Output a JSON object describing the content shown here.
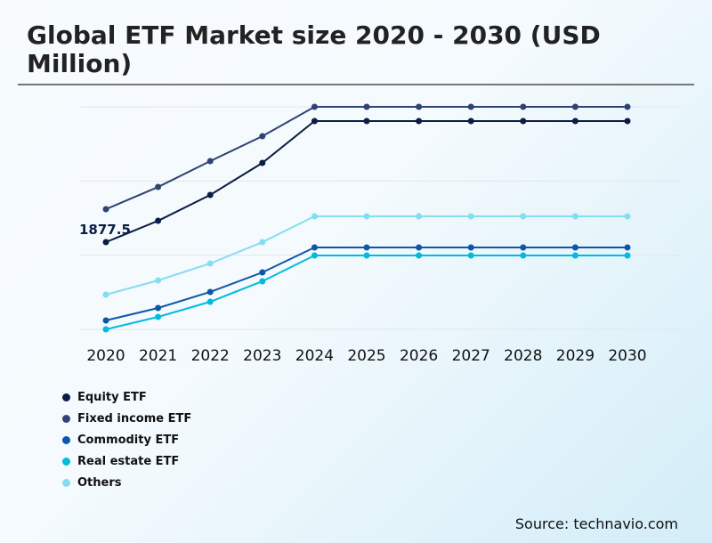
{
  "title": "Global ETF Market size 2020 - 2030 (USD Million)",
  "source": "Source: technavio.com",
  "chart_data": {
    "type": "line",
    "title": "Global ETF Market size 2020 - 2030 (USD Million)",
    "xlabel": "",
    "ylabel": "",
    "categories": [
      "2020",
      "2021",
      "2022",
      "2023",
      "2024",
      "2025",
      "2026",
      "2027",
      "2028",
      "2029",
      "2030"
    ],
    "ylim": [
      0,
      4790
    ],
    "grid": true,
    "legend_position": "bottom-left",
    "series": [
      {
        "name": "Equity ETF",
        "color": "#0b1d45",
        "values": [
          1877.5,
          2337,
          2893,
          3583,
          4483,
          4483,
          4483,
          4483,
          4483,
          4483,
          4483
        ]
      },
      {
        "name": "Fixed income ETF",
        "color": "#2e4374",
        "values": [
          2586,
          3065,
          3621,
          4157,
          4790,
          4790,
          4790,
          4790,
          4790,
          4790,
          4790
        ]
      },
      {
        "name": "Commodity ETF",
        "color": "#0d57a8",
        "values": [
          192,
          460,
          805,
          1226,
          1763,
          1763,
          1763,
          1763,
          1763,
          1763,
          1763
        ]
      },
      {
        "name": "Real estate ETF",
        "color": "#00bcdf",
        "values": [
          0,
          268,
          594,
          1035,
          1590,
          1590,
          1590,
          1590,
          1590,
          1590,
          1590
        ]
      },
      {
        "name": "Others",
        "color": "#86ddf1",
        "values": [
          747,
          1054,
          1418,
          1877,
          2433,
          2433,
          2433,
          2433,
          2433,
          2433,
          2433
        ]
      }
    ],
    "annotations": [
      {
        "series": "Equity ETF",
        "x": "2020",
        "text": "1877.5"
      }
    ]
  }
}
